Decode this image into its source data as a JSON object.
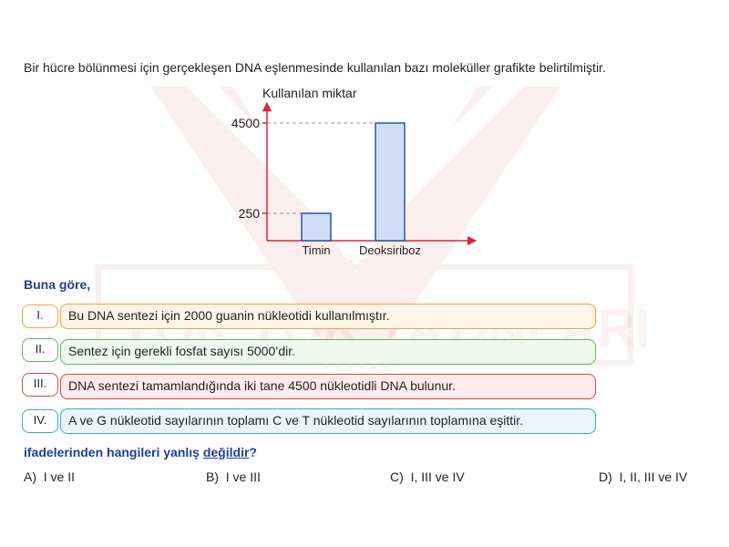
{
  "question": "Bir hücre bölünmesi için gerçekleşen DNA eşlenmesinde kullanılan bazı moleküller grafikte belirtilmiştir.",
  "chart_data": {
    "type": "bar",
    "ylabel": "Kullanılan miktar",
    "xlabel": "",
    "categories": [
      "Timin",
      "Deoksiriboz"
    ],
    "values": [
      250,
      4500
    ],
    "yticks": [
      "250",
      "4500"
    ],
    "bar_color": "#cfe0f6",
    "bar_border": "#2e52a6",
    "axis_color": "#d9263b"
  },
  "lead": "Buna göre,",
  "statements": [
    {
      "num": "I.",
      "text": "Bu DNA sentezi için 2000 guanin nükleotidi kullanılmıştır."
    },
    {
      "num": "II.",
      "text": "Sentez için gerekli fosfat sayısı 5000’dir."
    },
    {
      "num": "III.",
      "text": "DNA sentezi tamamlandığında iki tane 4500 nükleotidli DNA bulunur."
    },
    {
      "num": "IV.",
      "text": "A ve G nükleotid sayılarının toplamı C ve T nükleotid sayılarının toplamına eşittir."
    }
  ],
  "ask": {
    "pre": "ifadelerinden hangileri yanlış ",
    "under": "değildir",
    "post": "?"
  },
  "options": [
    {
      "letter": "A)",
      "text": "I ve II"
    },
    {
      "letter": "B)",
      "text": "I ve III"
    },
    {
      "letter": "C)",
      "text": "I, III ve IV"
    },
    {
      "letter": "D)",
      "text": "I, II, III ve IV"
    }
  ],
  "watermark": {
    "text": "YOK YOK YAYINLARI",
    "color": "#d22030"
  }
}
